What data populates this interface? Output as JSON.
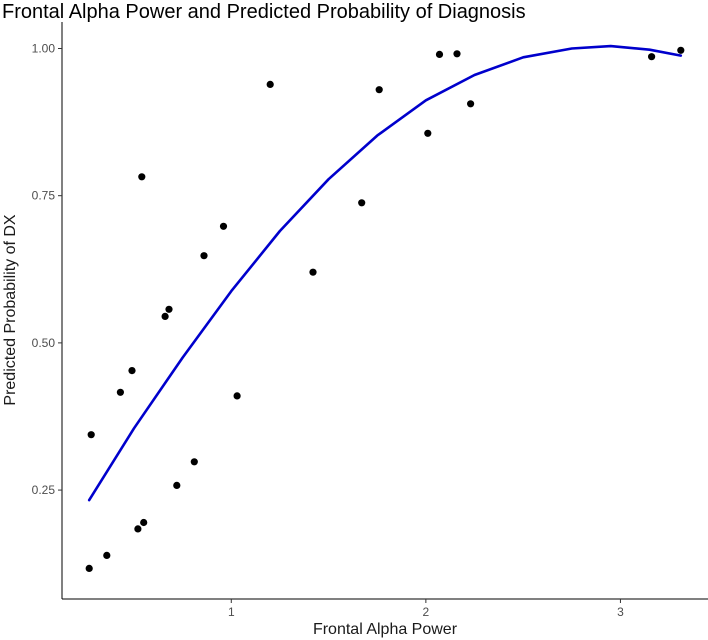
{
  "chart_data": {
    "type": "scatter",
    "title": "Frontal Alpha Power and Predicted Probability of Diagnosis",
    "xlabel": "Frontal Alpha Power",
    "ylabel": "Predicted Probability of DX",
    "xlim": [
      0.13,
      3.45
    ],
    "ylim": [
      0.065,
      1.045
    ],
    "x_ticks": [
      {
        "value": 1,
        "label": "1"
      },
      {
        "value": 2,
        "label": "2"
      },
      {
        "value": 3,
        "label": "3"
      }
    ],
    "y_ticks": [
      {
        "value": 0.25,
        "label": "0.25"
      },
      {
        "value": 0.5,
        "label": "0.50"
      },
      {
        "value": 0.75,
        "label": "0.75"
      },
      {
        "value": 1.0,
        "label": "1.00"
      }
    ],
    "grid": false,
    "series": [
      {
        "kind": "points",
        "color": "#000000",
        "points": [
          {
            "x": 0.27,
            "y": 0.117
          },
          {
            "x": 0.28,
            "y": 0.344
          },
          {
            "x": 0.36,
            "y": 0.139
          },
          {
            "x": 0.43,
            "y": 0.416
          },
          {
            "x": 0.49,
            "y": 0.453
          },
          {
            "x": 0.52,
            "y": 0.184
          },
          {
            "x": 0.54,
            "y": 0.782
          },
          {
            "x": 0.55,
            "y": 0.195
          },
          {
            "x": 0.66,
            "y": 0.545
          },
          {
            "x": 0.68,
            "y": 0.557
          },
          {
            "x": 0.72,
            "y": 0.258
          },
          {
            "x": 0.81,
            "y": 0.298
          },
          {
            "x": 0.86,
            "y": 0.648
          },
          {
            "x": 0.96,
            "y": 0.698
          },
          {
            "x": 1.03,
            "y": 0.41
          },
          {
            "x": 1.2,
            "y": 0.939
          },
          {
            "x": 1.42,
            "y": 0.62
          },
          {
            "x": 1.67,
            "y": 0.738
          },
          {
            "x": 1.76,
            "y": 0.93
          },
          {
            "x": 2.01,
            "y": 0.856
          },
          {
            "x": 2.07,
            "y": 0.99
          },
          {
            "x": 2.16,
            "y": 0.991
          },
          {
            "x": 2.23,
            "y": 0.906
          },
          {
            "x": 3.16,
            "y": 0.986
          },
          {
            "x": 3.31,
            "y": 0.997
          }
        ]
      },
      {
        "kind": "curve",
        "color": "#0000CC",
        "points": [
          {
            "x": 0.27,
            "y": 0.233
          },
          {
            "x": 0.5,
            "y": 0.355
          },
          {
            "x": 0.75,
            "y": 0.475
          },
          {
            "x": 1.0,
            "y": 0.588
          },
          {
            "x": 1.25,
            "y": 0.69
          },
          {
            "x": 1.5,
            "y": 0.778
          },
          {
            "x": 1.75,
            "y": 0.852
          },
          {
            "x": 2.0,
            "y": 0.912
          },
          {
            "x": 2.25,
            "y": 0.955
          },
          {
            "x": 2.5,
            "y": 0.985
          },
          {
            "x": 2.75,
            "y": 1.0
          },
          {
            "x": 2.95,
            "y": 1.004
          },
          {
            "x": 3.15,
            "y": 0.998
          },
          {
            "x": 3.31,
            "y": 0.988
          }
        ]
      }
    ]
  }
}
